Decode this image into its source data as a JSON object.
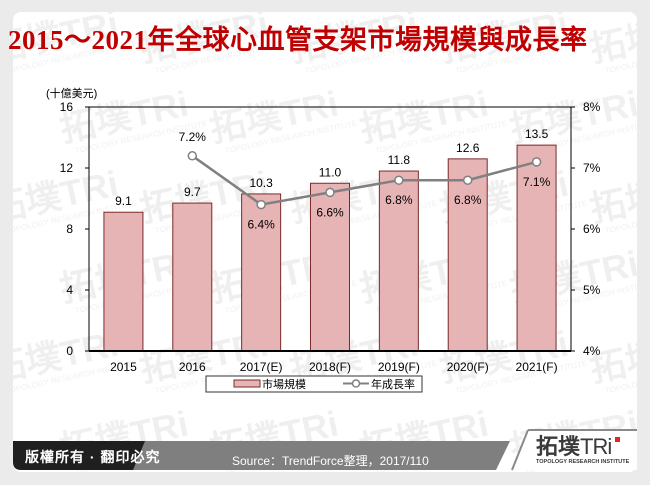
{
  "title": "2015～2021年全球心血管支架市場規模與成長率",
  "footer": {
    "copyright": "版權所有 · 翻印必究",
    "source": "Source：TrendForce整理，2017/110",
    "logo_main": "拓墣TRi",
    "logo_sub": "TOPOLOGY RESEARCH INSTITUTE"
  },
  "watermark": {
    "text": "拓墣TRi",
    "sub": "TOPOLOGY RESEARCH INSTITUTE"
  },
  "colors": {
    "title": "#c00000",
    "bar_fill": "#e6b4b4",
    "bar_stroke": "#7a2a2a",
    "line": "#808080",
    "footer_dark": "#1f1f1f",
    "footer_gray": "#7f7f7f",
    "logo_red": "#e8202a"
  },
  "chart_data": {
    "type": "bar+line",
    "title": "2015～2021年全球心血管支架市場規模與成長率",
    "unit_label": "(十億美元)",
    "categories": [
      "2015",
      "2016",
      "2017(E)",
      "2018(F)",
      "2019(F)",
      "2020(F)",
      "2021(F)"
    ],
    "series": [
      {
        "name": "市場規模",
        "type": "bar",
        "axis": "left",
        "values": [
          9.1,
          9.7,
          10.3,
          11.0,
          11.8,
          12.6,
          13.5
        ],
        "labels": [
          "9.1",
          "9.7",
          "10.3",
          "11.0",
          "11.8",
          "12.6",
          "13.5"
        ]
      },
      {
        "name": "年成長率",
        "type": "line",
        "axis": "right",
        "values": [
          null,
          7.2,
          6.4,
          6.6,
          6.8,
          6.8,
          7.1
        ],
        "labels": [
          "",
          "7.2%",
          "6.4%",
          "6.6%",
          "6.8%",
          "6.8%",
          "7.1%"
        ]
      }
    ],
    "y_left": {
      "ticks": [
        "0",
        "4",
        "8",
        "12",
        "16"
      ],
      "range": [
        0,
        16
      ]
    },
    "y_right": {
      "ticks": [
        "4%",
        "5%",
        "6%",
        "7%",
        "8%"
      ],
      "range": [
        4,
        8
      ]
    },
    "legend": [
      "市場規模",
      "年成長率"
    ],
    "legend_position": "bottom",
    "grid": false
  }
}
